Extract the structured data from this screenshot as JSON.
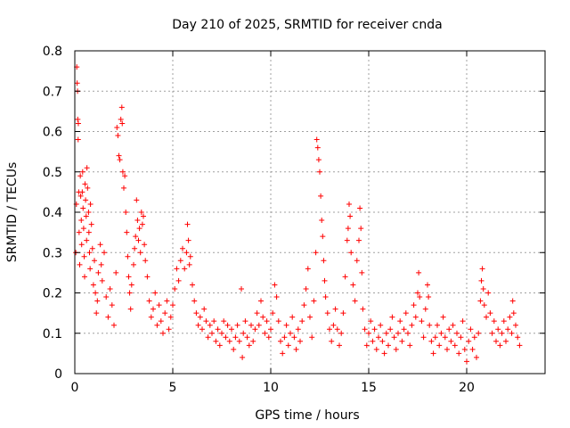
{
  "chart_data": {
    "type": "scatter",
    "title": "Day 210 of 2025, SRMTID for receiver cnda",
    "xlabel": "GPS time / hours",
    "ylabel": "SRMTID / TECUs",
    "xlim": [
      0,
      24
    ],
    "ylim": [
      0,
      0.8
    ],
    "grid": true,
    "marker": "plus",
    "x_ticks": [
      0,
      5,
      10,
      15,
      20
    ],
    "y_ticks": [
      0,
      0.1,
      0.2,
      0.3,
      0.4,
      0.5,
      0.6,
      0.7,
      0.8
    ],
    "x_tick_labels": [
      "0",
      "5",
      "10",
      "15",
      "20"
    ],
    "y_tick_labels": [
      "0",
      "0.1",
      "0.2",
      "0.3",
      "0.4",
      "0.5",
      "0.6",
      "0.7",
      "0.8"
    ],
    "colors": {
      "series": "#ff0000",
      "grid": "#a0a0a0",
      "axis": "#000000"
    },
    "series": [
      {
        "name": "SRMTID",
        "points": [
          [
            0.05,
            0.3
          ],
          [
            0.08,
            0.42
          ],
          [
            0.1,
            0.76
          ],
          [
            0.12,
            0.72
          ],
          [
            0.14,
            0.7
          ],
          [
            0.15,
            0.63
          ],
          [
            0.17,
            0.58
          ],
          [
            0.18,
            0.62
          ],
          [
            0.2,
            0.45
          ],
          [
            0.22,
            0.35
          ],
          [
            0.25,
            0.27
          ],
          [
            0.28,
            0.49
          ],
          [
            0.3,
            0.44
          ],
          [
            0.33,
            0.38
          ],
          [
            0.35,
            0.32
          ],
          [
            0.38,
            0.45
          ],
          [
            0.4,
            0.5
          ],
          [
            0.42,
            0.41
          ],
          [
            0.45,
            0.36
          ],
          [
            0.48,
            0.29
          ],
          [
            0.5,
            0.24
          ],
          [
            0.52,
            0.47
          ],
          [
            0.55,
            0.43
          ],
          [
            0.58,
            0.39
          ],
          [
            0.6,
            0.33
          ],
          [
            0.62,
            0.51
          ],
          [
            0.65,
            0.46
          ],
          [
            0.7,
            0.4
          ],
          [
            0.72,
            0.35
          ],
          [
            0.75,
            0.3
          ],
          [
            0.78,
            0.26
          ],
          [
            0.8,
            0.42
          ],
          [
            0.85,
            0.37
          ],
          [
            0.9,
            0.31
          ],
          [
            0.95,
            0.22
          ],
          [
            1.0,
            0.28
          ],
          [
            1.05,
            0.2
          ],
          [
            1.1,
            0.15
          ],
          [
            1.15,
            0.18
          ],
          [
            1.2,
            0.25
          ],
          [
            1.3,
            0.32
          ],
          [
            1.35,
            0.27
          ],
          [
            1.4,
            0.23
          ],
          [
            1.5,
            0.3
          ],
          [
            1.6,
            0.19
          ],
          [
            1.7,
            0.14
          ],
          [
            1.8,
            0.21
          ],
          [
            1.9,
            0.17
          ],
          [
            2.0,
            0.12
          ],
          [
            2.1,
            0.25
          ],
          [
            2.15,
            0.61
          ],
          [
            2.2,
            0.59
          ],
          [
            2.25,
            0.54
          ],
          [
            2.3,
            0.53
          ],
          [
            2.35,
            0.63
          ],
          [
            2.4,
            0.66
          ],
          [
            2.42,
            0.62
          ],
          [
            2.45,
            0.5
          ],
          [
            2.5,
            0.46
          ],
          [
            2.55,
            0.49
          ],
          [
            2.6,
            0.4
          ],
          [
            2.65,
            0.35
          ],
          [
            2.7,
            0.29
          ],
          [
            2.75,
            0.24
          ],
          [
            2.8,
            0.2
          ],
          [
            2.85,
            0.16
          ],
          [
            2.9,
            0.22
          ],
          [
            3.0,
            0.27
          ],
          [
            3.05,
            0.31
          ],
          [
            3.1,
            0.34
          ],
          [
            3.15,
            0.43
          ],
          [
            3.2,
            0.38
          ],
          [
            3.25,
            0.33
          ],
          [
            3.3,
            0.36
          ],
          [
            3.35,
            0.3
          ],
          [
            3.4,
            0.4
          ],
          [
            3.45,
            0.37
          ],
          [
            3.5,
            0.39
          ],
          [
            3.55,
            0.32
          ],
          [
            3.6,
            0.28
          ],
          [
            3.7,
            0.24
          ],
          [
            3.8,
            0.18
          ],
          [
            3.9,
            0.14
          ],
          [
            4.0,
            0.16
          ],
          [
            4.1,
            0.2
          ],
          [
            4.2,
            0.12
          ],
          [
            4.3,
            0.17
          ],
          [
            4.4,
            0.13
          ],
          [
            4.5,
            0.1
          ],
          [
            4.6,
            0.15
          ],
          [
            4.7,
            0.18
          ],
          [
            4.8,
            0.11
          ],
          [
            4.9,
            0.14
          ],
          [
            5.0,
            0.17
          ],
          [
            5.1,
            0.21
          ],
          [
            5.2,
            0.26
          ],
          [
            5.3,
            0.23
          ],
          [
            5.4,
            0.28
          ],
          [
            5.5,
            0.31
          ],
          [
            5.6,
            0.26
          ],
          [
            5.7,
            0.3
          ],
          [
            5.75,
            0.37
          ],
          [
            5.8,
            0.33
          ],
          [
            5.85,
            0.27
          ],
          [
            5.9,
            0.29
          ],
          [
            6.0,
            0.22
          ],
          [
            6.1,
            0.18
          ],
          [
            6.2,
            0.15
          ],
          [
            6.3,
            0.12
          ],
          [
            6.4,
            0.14
          ],
          [
            6.5,
            0.11
          ],
          [
            6.6,
            0.16
          ],
          [
            6.7,
            0.13
          ],
          [
            6.8,
            0.09
          ],
          [
            6.9,
            0.12
          ],
          [
            7.0,
            0.1
          ],
          [
            7.1,
            0.13
          ],
          [
            7.2,
            0.08
          ],
          [
            7.3,
            0.11
          ],
          [
            7.4,
            0.07
          ],
          [
            7.5,
            0.1
          ],
          [
            7.6,
            0.13
          ],
          [
            7.7,
            0.09
          ],
          [
            7.8,
            0.12
          ],
          [
            7.9,
            0.08
          ],
          [
            8.0,
            0.11
          ],
          [
            8.1,
            0.06
          ],
          [
            8.2,
            0.09
          ],
          [
            8.3,
            0.12
          ],
          [
            8.4,
            0.08
          ],
          [
            8.5,
            0.21
          ],
          [
            8.55,
            0.04
          ],
          [
            8.6,
            0.1
          ],
          [
            8.7,
            0.13
          ],
          [
            8.8,
            0.09
          ],
          [
            8.9,
            0.07
          ],
          [
            9.0,
            0.12
          ],
          [
            9.1,
            0.08
          ],
          [
            9.2,
            0.11
          ],
          [
            9.3,
            0.15
          ],
          [
            9.4,
            0.12
          ],
          [
            9.5,
            0.18
          ],
          [
            9.6,
            0.14
          ],
          [
            9.7,
            0.1
          ],
          [
            9.8,
            0.13
          ],
          [
            9.9,
            0.09
          ],
          [
            10.0,
            0.11
          ],
          [
            10.1,
            0.15
          ],
          [
            10.2,
            0.22
          ],
          [
            10.3,
            0.19
          ],
          [
            10.4,
            0.13
          ],
          [
            10.5,
            0.08
          ],
          [
            10.6,
            0.05
          ],
          [
            10.7,
            0.09
          ],
          [
            10.8,
            0.12
          ],
          [
            10.9,
            0.07
          ],
          [
            11.0,
            0.1
          ],
          [
            11.1,
            0.14
          ],
          [
            11.2,
            0.09
          ],
          [
            11.3,
            0.06
          ],
          [
            11.4,
            0.11
          ],
          [
            11.5,
            0.08
          ],
          [
            11.6,
            0.13
          ],
          [
            11.7,
            0.17
          ],
          [
            11.8,
            0.21
          ],
          [
            11.9,
            0.26
          ],
          [
            12.0,
            0.14
          ],
          [
            12.1,
            0.09
          ],
          [
            12.2,
            0.18
          ],
          [
            12.3,
            0.3
          ],
          [
            12.35,
            0.58
          ],
          [
            12.4,
            0.56
          ],
          [
            12.45,
            0.53
          ],
          [
            12.5,
            0.5
          ],
          [
            12.55,
            0.44
          ],
          [
            12.6,
            0.38
          ],
          [
            12.65,
            0.34
          ],
          [
            12.7,
            0.28
          ],
          [
            12.75,
            0.23
          ],
          [
            12.8,
            0.19
          ],
          [
            12.9,
            0.15
          ],
          [
            13.0,
            0.11
          ],
          [
            13.1,
            0.08
          ],
          [
            13.2,
            0.12
          ],
          [
            13.3,
            0.16
          ],
          [
            13.4,
            0.11
          ],
          [
            13.5,
            0.07
          ],
          [
            13.6,
            0.1
          ],
          [
            13.7,
            0.15
          ],
          [
            13.8,
            0.24
          ],
          [
            13.9,
            0.33
          ],
          [
            13.95,
            0.36
          ],
          [
            14.0,
            0.42
          ],
          [
            14.05,
            0.39
          ],
          [
            14.1,
            0.3
          ],
          [
            14.2,
            0.22
          ],
          [
            14.3,
            0.18
          ],
          [
            14.4,
            0.28
          ],
          [
            14.5,
            0.33
          ],
          [
            14.55,
            0.41
          ],
          [
            14.6,
            0.36
          ],
          [
            14.65,
            0.25
          ],
          [
            14.7,
            0.16
          ],
          [
            14.8,
            0.11
          ],
          [
            14.9,
            0.07
          ],
          [
            15.0,
            0.1
          ],
          [
            15.1,
            0.13
          ],
          [
            15.2,
            0.08
          ],
          [
            15.3,
            0.11
          ],
          [
            15.4,
            0.06
          ],
          [
            15.5,
            0.09
          ],
          [
            15.6,
            0.12
          ],
          [
            15.7,
            0.08
          ],
          [
            15.8,
            0.05
          ],
          [
            15.9,
            0.1
          ],
          [
            16.0,
            0.07
          ],
          [
            16.1,
            0.11
          ],
          [
            16.2,
            0.14
          ],
          [
            16.3,
            0.09
          ],
          [
            16.4,
            0.06
          ],
          [
            16.5,
            0.1
          ],
          [
            16.6,
            0.13
          ],
          [
            16.7,
            0.08
          ],
          [
            16.8,
            0.11
          ],
          [
            16.9,
            0.15
          ],
          [
            17.0,
            0.1
          ],
          [
            17.1,
            0.07
          ],
          [
            17.2,
            0.12
          ],
          [
            17.3,
            0.17
          ],
          [
            17.4,
            0.14
          ],
          [
            17.5,
            0.2
          ],
          [
            17.55,
            0.25
          ],
          [
            17.6,
            0.19
          ],
          [
            17.7,
            0.13
          ],
          [
            17.8,
            0.09
          ],
          [
            17.9,
            0.16
          ],
          [
            18.0,
            0.22
          ],
          [
            18.05,
            0.19
          ],
          [
            18.1,
            0.12
          ],
          [
            18.2,
            0.08
          ],
          [
            18.3,
            0.05
          ],
          [
            18.4,
            0.09
          ],
          [
            18.5,
            0.12
          ],
          [
            18.6,
            0.07
          ],
          [
            18.7,
            0.1
          ],
          [
            18.8,
            0.14
          ],
          [
            18.9,
            0.09
          ],
          [
            19.0,
            0.06
          ],
          [
            19.1,
            0.11
          ],
          [
            19.2,
            0.08
          ],
          [
            19.3,
            0.12
          ],
          [
            19.4,
            0.07
          ],
          [
            19.5,
            0.1
          ],
          [
            19.6,
            0.05
          ],
          [
            19.7,
            0.09
          ],
          [
            19.8,
            0.13
          ],
          [
            19.9,
            0.06
          ],
          [
            20.0,
            0.03
          ],
          [
            20.1,
            0.08
          ],
          [
            20.2,
            0.11
          ],
          [
            20.3,
            0.06
          ],
          [
            20.4,
            0.09
          ],
          [
            20.5,
            0.04
          ],
          [
            20.6,
            0.1
          ],
          [
            20.7,
            0.18
          ],
          [
            20.75,
            0.23
          ],
          [
            20.8,
            0.26
          ],
          [
            20.85,
            0.21
          ],
          [
            20.9,
            0.17
          ],
          [
            21.0,
            0.14
          ],
          [
            21.1,
            0.2
          ],
          [
            21.2,
            0.15
          ],
          [
            21.3,
            0.1
          ],
          [
            21.4,
            0.13
          ],
          [
            21.5,
            0.08
          ],
          [
            21.6,
            0.11
          ],
          [
            21.7,
            0.07
          ],
          [
            21.8,
            0.1
          ],
          [
            21.9,
            0.13
          ],
          [
            22.0,
            0.08
          ],
          [
            22.1,
            0.11
          ],
          [
            22.2,
            0.14
          ],
          [
            22.3,
            0.1
          ],
          [
            22.35,
            0.18
          ],
          [
            22.4,
            0.15
          ],
          [
            22.5,
            0.12
          ],
          [
            22.6,
            0.09
          ],
          [
            22.7,
            0.07
          ]
        ]
      }
    ]
  }
}
